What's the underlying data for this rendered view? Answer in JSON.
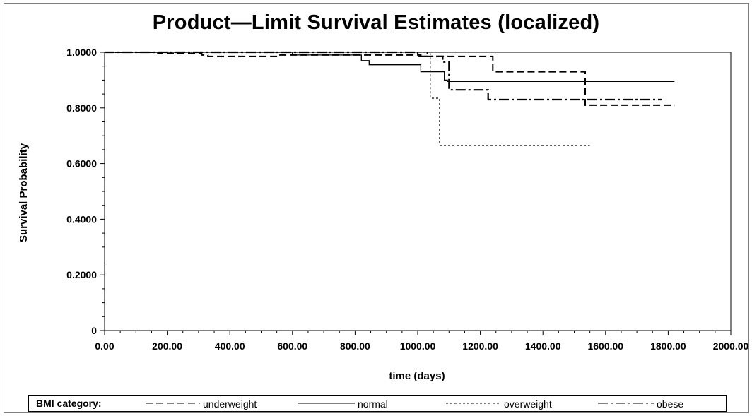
{
  "chart_data": {
    "type": "line",
    "step": true,
    "title": "Product—Limit Survival Estimates (localized)",
    "xlabel": "time (days)",
    "ylabel": "Survival Probability",
    "xlim": [
      0,
      2000
    ],
    "ylim": [
      0,
      1
    ],
    "x_ticks": [
      "0.00",
      "200.00",
      "400.00",
      "600.00",
      "800.00",
      "1000.00",
      "1200.00",
      "1400.00",
      "1600.00",
      "1800.00",
      "2000.00"
    ],
    "y_ticks": [
      "0",
      "0.2000",
      "0.4000",
      "0.6000",
      "0.8000",
      "1.0000"
    ],
    "legend_title": "BMI category:",
    "legend_position": "bottom",
    "grid": false,
    "series": [
      {
        "name": "underweight",
        "dash": "long-dash",
        "x": [
          0,
          170,
          310,
          330,
          560,
          590,
          1010,
          1040,
          1240,
          1535,
          1820
        ],
        "y": [
          1.0,
          0.995,
          0.99,
          0.985,
          0.99,
          0.99,
          0.985,
          0.985,
          0.93,
          0.81,
          0.81
        ]
      },
      {
        "name": "normal",
        "dash": "solid",
        "x": [
          0,
          600,
          820,
          845,
          1010,
          1050,
          1085,
          1095,
          1820
        ],
        "y": [
          1.0,
          0.99,
          0.97,
          0.955,
          0.93,
          0.93,
          0.9,
          0.895,
          0.895
        ]
      },
      {
        "name": "overweight",
        "dash": "short-dash",
        "x": [
          0,
          1030,
          1040,
          1070,
          1550
        ],
        "y": [
          1.0,
          0.995,
          0.835,
          0.665,
          0.665
        ]
      },
      {
        "name": "obese",
        "dash": "dash-dot",
        "x": [
          0,
          1000,
          1080,
          1100,
          1225,
          1780
        ],
        "y": [
          1.0,
          0.985,
          0.965,
          0.865,
          0.83,
          0.83
        ]
      }
    ]
  }
}
